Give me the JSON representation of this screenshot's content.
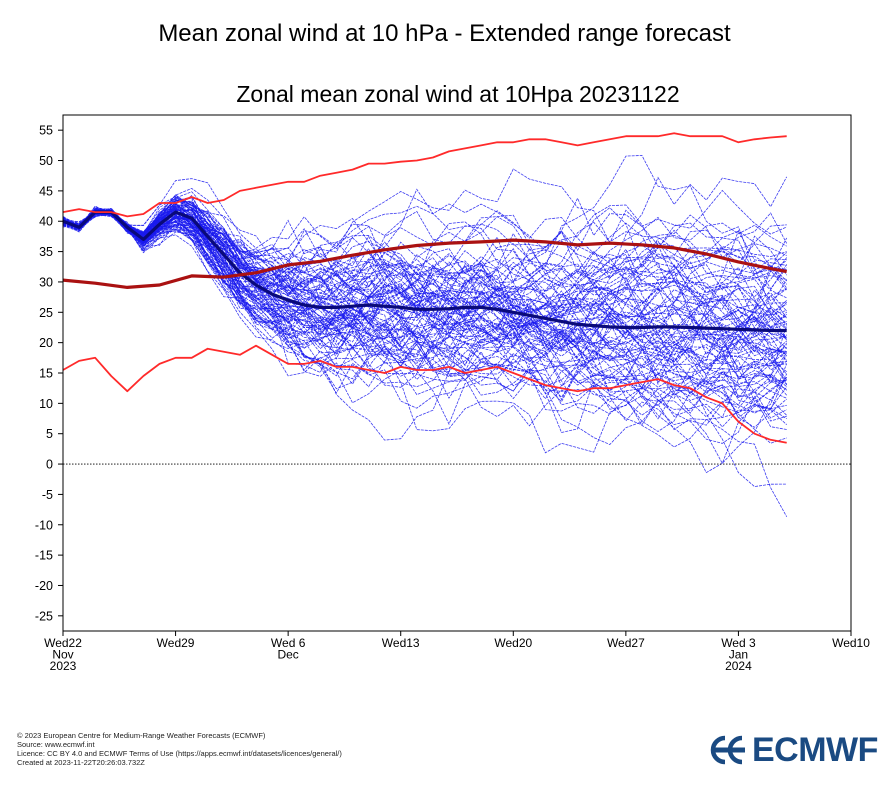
{
  "page": {
    "title": "Mean zonal wind at 10 hPa - Extended range forecast",
    "footer": [
      "© 2023 European Centre for Medium-Range Weather Forecasts (ECMWF)",
      "Source: www.ecmwf.int",
      "Licence: CC BY 4.0 and ECMWF Terms of Use (https://apps.ecmwf.int/datasets/licences/general/)",
      "Created at 2023-11-22T20:26:03.732Z"
    ],
    "logo_text": "ECMWF"
  },
  "colors": {
    "ensemble": "#1a1aee",
    "ensemble_mean": "#0a0a7a",
    "climatology": "#ff2a2a",
    "climatology_mean": "#aa1111"
  },
  "chart_data": {
    "type": "line",
    "title": "Zonal mean zonal wind at 10Hpa 20231122",
    "xlabel": "",
    "ylabel": "",
    "xlim": [
      0,
      49
    ],
    "ylim": [
      -27.5,
      57.5
    ],
    "yticks": [
      55,
      50,
      45,
      40,
      35,
      30,
      25,
      20,
      15,
      10,
      5,
      0,
      -5,
      -10,
      -15,
      -20,
      -25
    ],
    "ytick_labels": [
      "55",
      "50",
      "45",
      "40",
      "35",
      "30",
      "25",
      "20",
      "15",
      "10",
      "5",
      "0",
      "-5",
      "-10",
      "-15",
      "-20",
      "-25"
    ],
    "xticks": [
      {
        "x": 0,
        "lines": [
          "Wed22",
          "Nov",
          "2023"
        ]
      },
      {
        "x": 7,
        "lines": [
          "Wed29"
        ]
      },
      {
        "x": 14,
        "lines": [
          "Wed 6",
          "Dec"
        ]
      },
      {
        "x": 21,
        "lines": [
          "Wed13"
        ]
      },
      {
        "x": 28,
        "lines": [
          "Wed20"
        ]
      },
      {
        "x": 35,
        "lines": [
          "Wed27"
        ]
      },
      {
        "x": 42,
        "lines": [
          "Wed 3",
          "Jan",
          "2024"
        ]
      },
      {
        "x": 49,
        "lines": [
          "Wed10"
        ]
      }
    ],
    "zero_line": 0,
    "ensemble_member_count": 101,
    "ensemble_seed": 20231122,
    "ensemble_x_range": [
      0,
      45
    ],
    "series": [
      {
        "name": "Ensemble mean",
        "style": "ensemble_mean",
        "x": [
          0,
          1,
          2,
          3,
          4,
          5,
          6,
          7,
          8,
          9,
          10,
          11,
          12,
          13,
          14,
          15,
          16,
          17,
          18,
          19,
          20,
          21,
          22,
          23,
          24,
          25,
          26,
          27,
          28,
          29,
          30,
          31,
          32,
          33,
          34,
          35,
          36,
          37,
          38,
          39,
          40,
          41,
          42,
          43,
          44,
          45
        ],
        "values": [
          40.0,
          39.0,
          41.5,
          41.5,
          39.0,
          37.0,
          39.5,
          41.5,
          40.5,
          37.5,
          34.5,
          31.5,
          29.5,
          28.0,
          27.0,
          26.2,
          25.8,
          25.8,
          26.0,
          26.2,
          26.0,
          25.8,
          25.5,
          25.5,
          25.6,
          25.8,
          25.8,
          25.5,
          25.0,
          24.5,
          24.0,
          23.5,
          23.0,
          22.8,
          22.6,
          22.5,
          22.5,
          22.6,
          22.6,
          22.5,
          22.4,
          22.3,
          22.2,
          22.1,
          22.0,
          22.0
        ]
      },
      {
        "name": "Climatology mean",
        "style": "climatology_mean",
        "x": [
          0,
          2,
          4,
          6,
          8,
          10,
          12,
          14,
          16,
          18,
          20,
          22,
          24,
          26,
          28,
          30,
          32,
          34,
          36,
          38,
          40,
          42,
          44,
          45
        ],
        "values": [
          30.3,
          29.8,
          29.1,
          29.5,
          31.0,
          30.8,
          31.5,
          32.8,
          33.4,
          34.4,
          35.3,
          36.0,
          36.4,
          36.6,
          36.9,
          36.6,
          36.1,
          36.4,
          36.1,
          35.6,
          34.6,
          33.3,
          32.2,
          31.7
        ]
      },
      {
        "name": "Climatology max",
        "style": "climatology",
        "x": [
          0,
          1,
          2,
          3,
          4,
          5,
          6,
          7,
          8,
          9,
          10,
          11,
          12,
          13,
          14,
          15,
          16,
          17,
          18,
          19,
          20,
          21,
          22,
          23,
          24,
          25,
          26,
          27,
          28,
          29,
          30,
          31,
          32,
          33,
          34,
          35,
          36,
          37,
          38,
          39,
          40,
          41,
          42,
          43,
          44,
          45
        ],
        "values": [
          41.5,
          42.0,
          41.5,
          41.5,
          40.8,
          41.2,
          43.0,
          43.0,
          44.0,
          43.0,
          43.5,
          45.0,
          45.5,
          46.0,
          46.5,
          46.5,
          47.5,
          48.0,
          48.5,
          49.5,
          49.5,
          49.8,
          50.0,
          50.5,
          51.5,
          52.0,
          52.5,
          53.0,
          53.0,
          53.5,
          53.5,
          53.0,
          52.5,
          53.0,
          53.5,
          54.0,
          54.0,
          54.0,
          54.5,
          54.0,
          54.0,
          54.0,
          53.0,
          53.5,
          53.8,
          54.0
        ]
      },
      {
        "name": "Climatology min",
        "style": "climatology",
        "x": [
          0,
          1,
          2,
          3,
          4,
          5,
          6,
          7,
          8,
          9,
          10,
          11,
          12,
          13,
          14,
          15,
          16,
          17,
          18,
          19,
          20,
          21,
          22,
          23,
          24,
          25,
          26,
          27,
          28,
          29,
          30,
          31,
          32,
          33,
          34,
          35,
          36,
          37,
          38,
          39,
          40,
          41,
          42,
          43,
          44,
          45
        ],
        "values": [
          15.5,
          17.0,
          17.5,
          14.5,
          12.0,
          14.5,
          16.5,
          17.5,
          17.5,
          19.0,
          18.5,
          18.0,
          19.5,
          18.0,
          16.5,
          16.5,
          17.0,
          16.0,
          16.0,
          15.5,
          15.0,
          16.0,
          15.5,
          15.5,
          16.0,
          15.0,
          15.5,
          16.0,
          15.0,
          14.0,
          13.0,
          12.5,
          12.0,
          12.5,
          12.5,
          13.0,
          13.5,
          14.0,
          13.0,
          12.5,
          11.0,
          10.0,
          7.0,
          5.0,
          4.0,
          3.5
        ]
      }
    ]
  }
}
